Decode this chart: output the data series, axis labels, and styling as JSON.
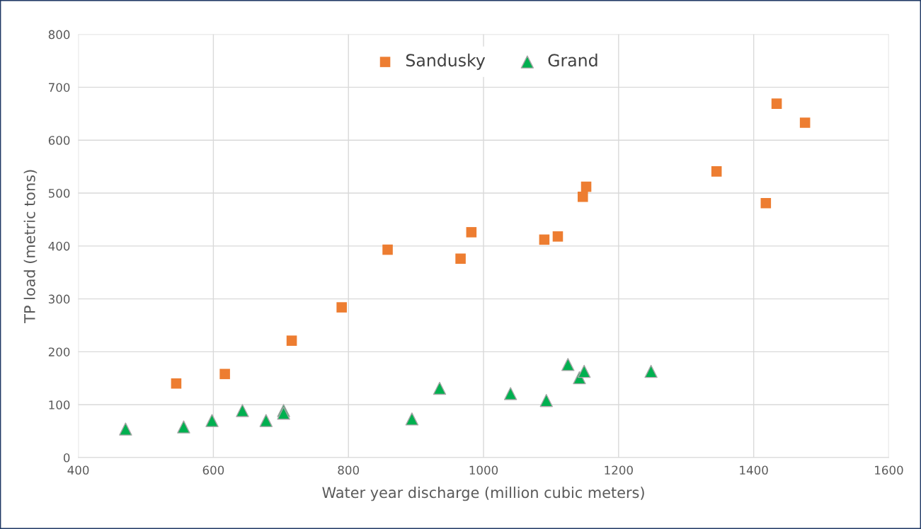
{
  "chart_data": {
    "type": "scatter",
    "xlabel": "Water year discharge (million cubic meters)",
    "ylabel": "TP load (metric tons)",
    "xlim": [
      400,
      1600
    ],
    "xticks": [
      400,
      600,
      800,
      1000,
      1200,
      1400,
      1600
    ],
    "ylim": [
      0,
      800
    ],
    "yticks": [
      0,
      100,
      200,
      300,
      400,
      500,
      600,
      700,
      800
    ],
    "grid": true,
    "legend": "top",
    "series": [
      {
        "name": "Sandusky",
        "color": "#ed7d31",
        "marker": "square",
        "x": [
          545,
          617,
          716,
          790,
          858,
          966,
          982,
          1090,
          1110,
          1147,
          1152,
          1345,
          1418,
          1434,
          1476
        ],
        "values": [
          140,
          158,
          221,
          284,
          393,
          376,
          426,
          412,
          418,
          493,
          512,
          541,
          481,
          669,
          633
        ]
      },
      {
        "name": "Grand",
        "color": "#00b050",
        "marker": "triangle",
        "x": [
          470,
          556,
          598,
          643,
          678,
          704,
          704,
          894,
          935,
          1040,
          1093,
          1125,
          1142,
          1149,
          1248
        ],
        "values": [
          54,
          58,
          70,
          89,
          70,
          89,
          84,
          73,
          131,
          121,
          108,
          176,
          151,
          163,
          163
        ]
      }
    ]
  }
}
